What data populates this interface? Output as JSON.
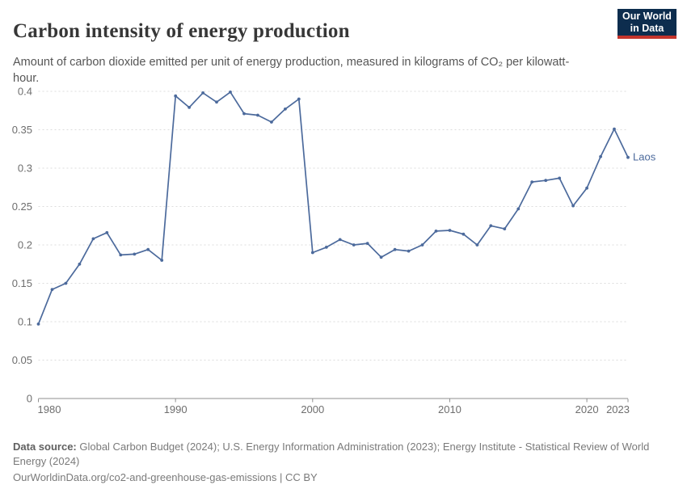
{
  "header": {
    "title": "Carbon intensity of energy production",
    "subtitle": "Amount of carbon dioxide emitted per unit of energy production, measured in kilograms of CO₂ per kilowatt-hour.",
    "logo": {
      "line1": "Our World",
      "line2": "in Data"
    }
  },
  "chart_data": {
    "type": "line",
    "title": "Carbon intensity of energy production",
    "ylabel": "kilograms of CO₂ per kilowatt-hour",
    "x_domain": [
      1980,
      2023
    ],
    "y_domain": [
      0,
      0.4
    ],
    "grid": "horizontal-dashed",
    "legend_position": "end-of-line-label",
    "x": [
      1980,
      1981,
      1982,
      1983,
      1984,
      1985,
      1986,
      1987,
      1988,
      1989,
      1990,
      1991,
      1992,
      1993,
      1994,
      1995,
      1996,
      1997,
      1998,
      1999,
      2000,
      2001,
      2002,
      2003,
      2004,
      2005,
      2006,
      2007,
      2008,
      2009,
      2010,
      2011,
      2012,
      2013,
      2014,
      2015,
      2016,
      2017,
      2018,
      2019,
      2020,
      2021,
      2022,
      2023
    ],
    "series": [
      {
        "name": "Laos",
        "color": "#4C6A9C",
        "values": [
          0.097,
          0.142,
          0.15,
          0.175,
          0.208,
          0.216,
          0.187,
          0.188,
          0.194,
          0.18,
          0.394,
          0.379,
          0.398,
          0.386,
          0.399,
          0.371,
          0.369,
          0.36,
          0.377,
          0.39,
          0.19,
          0.197,
          0.207,
          0.2,
          0.202,
          0.184,
          0.194,
          0.192,
          0.2,
          0.218,
          0.219,
          0.214,
          0.2,
          0.225,
          0.221,
          0.247,
          0.282,
          0.284,
          0.287,
          0.251,
          0.274,
          0.315,
          0.351,
          0.314
        ]
      }
    ],
    "y_ticks": [
      {
        "value": 0,
        "label": "0"
      },
      {
        "value": 0.05,
        "label": "0.05"
      },
      {
        "value": 0.1,
        "label": "0.1"
      },
      {
        "value": 0.15,
        "label": "0.15"
      },
      {
        "value": 0.2,
        "label": "0.2"
      },
      {
        "value": 0.25,
        "label": "0.25"
      },
      {
        "value": 0.3,
        "label": "0.3"
      },
      {
        "value": 0.35,
        "label": "0.35"
      },
      {
        "value": 0.4,
        "label": "0.4"
      }
    ],
    "x_ticks": [
      {
        "value": 1980,
        "label": "1980",
        "anchor": "start"
      },
      {
        "value": 1990,
        "label": "1990",
        "anchor": "middle"
      },
      {
        "value": 2000,
        "label": "2000",
        "anchor": "middle"
      },
      {
        "value": 2010,
        "label": "2010",
        "anchor": "middle"
      },
      {
        "value": 2020,
        "label": "2020",
        "anchor": "middle"
      },
      {
        "value": 2023,
        "label": "2023",
        "anchor": "end"
      }
    ]
  },
  "footer": {
    "source_label": "Data source:",
    "source_text": " Global Carbon Budget (2024); U.S. Energy Information Administration (2023); Energy Institute - Statistical Review of World Energy (2024)",
    "link_text": "OurWorldinData.org/co2-and-greenhouse-gas-emissions | CC BY"
  },
  "colors": {
    "line": "#4C6A9C",
    "grid": "#dcdcdc",
    "axis": "#8f8f8f",
    "tick_label": "#6e6e6e",
    "logo_navy": "#0d2d4e",
    "logo_red": "#c4352c"
  }
}
